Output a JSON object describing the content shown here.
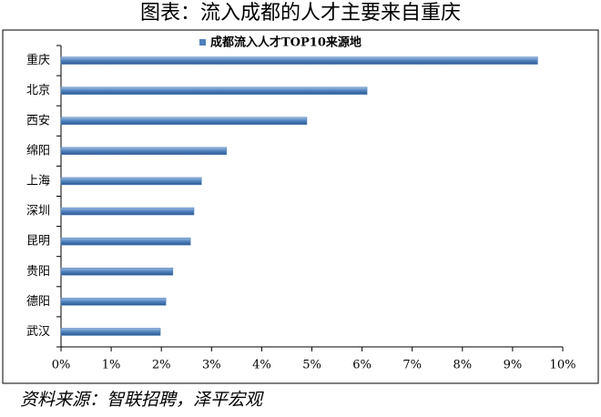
{
  "chart_data": {
    "type": "hbar",
    "title": "图表：流入成都的人才主要来自重庆",
    "source": "资料来源：智联招聘，泽平宏观",
    "categories": [
      "重庆",
      "北京",
      "西安",
      "绵阳",
      "上海",
      "深圳",
      "昆明",
      "贵阳",
      "德阳",
      "武汉"
    ],
    "series": [
      {
        "name": "成都流入人才TOP10来源地",
        "color": "#4f81bd",
        "values": [
          9.5,
          6.1,
          4.9,
          3.3,
          2.8,
          2.65,
          2.58,
          2.23,
          2.09,
          1.98
        ]
      }
    ],
    "xlim": [
      0,
      10
    ],
    "xticks": [
      {
        "value": 0,
        "label": "0%"
      },
      {
        "value": 1,
        "label": "1%"
      },
      {
        "value": 2,
        "label": "2%"
      },
      {
        "value": 3,
        "label": "3%"
      },
      {
        "value": 4,
        "label": "4%"
      },
      {
        "value": 5,
        "label": "5%"
      },
      {
        "value": 6,
        "label": "6%"
      },
      {
        "value": 7,
        "label": "7%"
      },
      {
        "value": 8,
        "label": "8%"
      },
      {
        "value": 9,
        "label": "9%"
      },
      {
        "value": 10,
        "label": "10%"
      }
    ],
    "grid": false
  }
}
